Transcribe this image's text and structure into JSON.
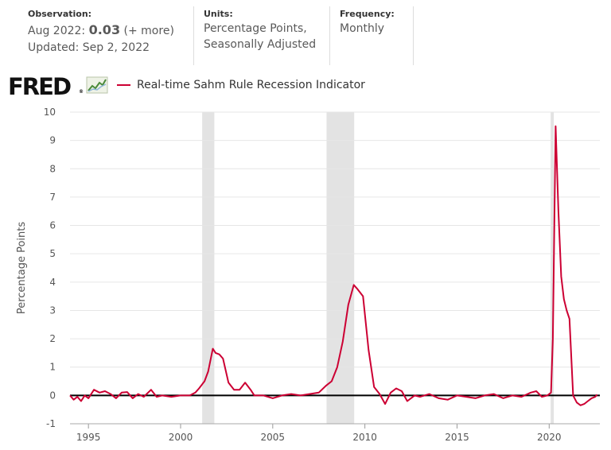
{
  "header": {
    "observation": {
      "label": "Observation:",
      "date_text": "Aug 2022:",
      "value": "0.03",
      "more": "(+ more)",
      "updated": "Updated: Sep 2, 2022"
    },
    "units": {
      "label": "Units:",
      "line1": "Percentage Points,",
      "line2": "Seasonally Adjusted"
    },
    "frequency": {
      "label": "Frequency:",
      "value": "Monthly"
    }
  },
  "logo": {
    "text": "FRED",
    "icon": "fred-graph-icon"
  },
  "colors": {
    "series": "#cc0033",
    "recession": "#e3e3e3",
    "zero_line": "#000000",
    "grid": "#e6e6e6"
  },
  "chart_data": {
    "type": "line",
    "ylabel": "Percentage Points",
    "xlim": [
      1994.0,
      2022.75
    ],
    "ylim": [
      -1,
      10
    ],
    "y_ticks": [
      "-1",
      "0",
      "1",
      "2",
      "3",
      "4",
      "5",
      "6",
      "7",
      "8",
      "9",
      "10"
    ],
    "x_ticks": [
      "1995",
      "2000",
      "2005",
      "2010",
      "2015",
      "2020"
    ],
    "recessions": [
      [
        2001.17,
        2001.83
      ],
      [
        2007.92,
        2009.42
      ],
      [
        2020.08,
        2020.25
      ]
    ],
    "series": [
      {
        "name": "Real-time Sahm Rule Recession Indicator",
        "points": [
          [
            1994.0,
            0.0
          ],
          [
            1994.2,
            -0.15
          ],
          [
            1994.4,
            -0.05
          ],
          [
            1994.6,
            -0.2
          ],
          [
            1994.8,
            0.0
          ],
          [
            1995.0,
            -0.1
          ],
          [
            1995.3,
            0.2
          ],
          [
            1995.6,
            0.1
          ],
          [
            1995.9,
            0.15
          ],
          [
            1996.2,
            0.05
          ],
          [
            1996.5,
            -0.1
          ],
          [
            1996.8,
            0.1
          ],
          [
            1997.1,
            0.12
          ],
          [
            1997.4,
            -0.1
          ],
          [
            1997.7,
            0.05
          ],
          [
            1998.0,
            -0.05
          ],
          [
            1998.4,
            0.2
          ],
          [
            1998.7,
            -0.05
          ],
          [
            1999.0,
            0.0
          ],
          [
            1999.5,
            -0.05
          ],
          [
            2000.0,
            0.0
          ],
          [
            2000.5,
            0.0
          ],
          [
            2000.8,
            0.1
          ],
          [
            2001.0,
            0.25
          ],
          [
            2001.3,
            0.5
          ],
          [
            2001.5,
            0.85
          ],
          [
            2001.75,
            1.65
          ],
          [
            2001.9,
            1.5
          ],
          [
            2002.1,
            1.45
          ],
          [
            2002.3,
            1.3
          ],
          [
            2002.6,
            0.45
          ],
          [
            2002.9,
            0.2
          ],
          [
            2003.2,
            0.2
          ],
          [
            2003.5,
            0.45
          ],
          [
            2003.8,
            0.2
          ],
          [
            2004.0,
            0.0
          ],
          [
            2004.5,
            0.0
          ],
          [
            2005.0,
            -0.1
          ],
          [
            2005.5,
            0.0
          ],
          [
            2006.0,
            0.05
          ],
          [
            2006.5,
            0.0
          ],
          [
            2007.0,
            0.05
          ],
          [
            2007.5,
            0.1
          ],
          [
            2007.9,
            0.35
          ],
          [
            2008.2,
            0.5
          ],
          [
            2008.5,
            1.0
          ],
          [
            2008.8,
            1.9
          ],
          [
            2009.1,
            3.2
          ],
          [
            2009.4,
            3.9
          ],
          [
            2009.6,
            3.75
          ],
          [
            2009.9,
            3.5
          ],
          [
            2010.2,
            1.6
          ],
          [
            2010.5,
            0.3
          ],
          [
            2010.8,
            0.05
          ],
          [
            2011.1,
            -0.3
          ],
          [
            2011.4,
            0.1
          ],
          [
            2011.7,
            0.25
          ],
          [
            2012.0,
            0.15
          ],
          [
            2012.3,
            -0.2
          ],
          [
            2012.7,
            0.0
          ],
          [
            2013.0,
            -0.05
          ],
          [
            2013.5,
            0.05
          ],
          [
            2014.0,
            -0.1
          ],
          [
            2014.5,
            -0.15
          ],
          [
            2015.0,
            0.0
          ],
          [
            2015.5,
            -0.05
          ],
          [
            2016.0,
            -0.1
          ],
          [
            2016.5,
            0.0
          ],
          [
            2017.0,
            0.05
          ],
          [
            2017.5,
            -0.1
          ],
          [
            2018.0,
            0.0
          ],
          [
            2018.5,
            -0.05
          ],
          [
            2019.0,
            0.1
          ],
          [
            2019.3,
            0.15
          ],
          [
            2019.6,
            -0.05
          ],
          [
            2019.9,
            0.0
          ],
          [
            2020.1,
            0.1
          ],
          [
            2020.2,
            2.0
          ],
          [
            2020.35,
            9.5
          ],
          [
            2020.5,
            6.5
          ],
          [
            2020.65,
            4.2
          ],
          [
            2020.8,
            3.4
          ],
          [
            2020.95,
            3.0
          ],
          [
            2021.1,
            2.7
          ],
          [
            2021.3,
            0.0
          ],
          [
            2021.5,
            -0.25
          ],
          [
            2021.7,
            -0.35
          ],
          [
            2021.9,
            -0.3
          ],
          [
            2022.1,
            -0.2
          ],
          [
            2022.3,
            -0.1
          ],
          [
            2022.5,
            -0.05
          ],
          [
            2022.6,
            0.03
          ]
        ]
      }
    ]
  }
}
